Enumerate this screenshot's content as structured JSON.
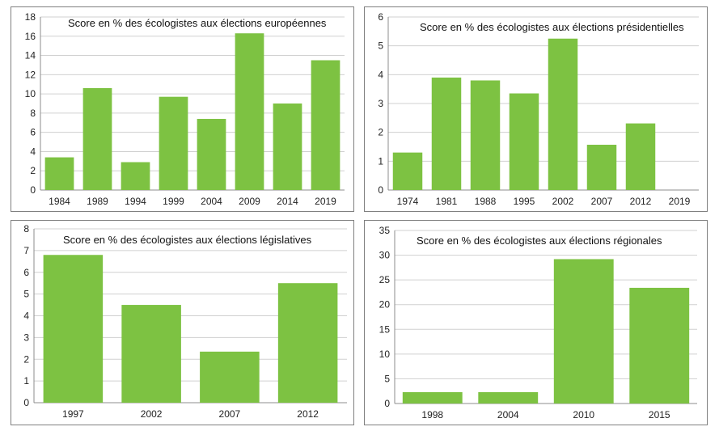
{
  "chart_data": [
    {
      "type": "bar",
      "title": "Score en % des écologistes aux élections européennes",
      "categories": [
        "1984",
        "1989",
        "1994",
        "1999",
        "2004",
        "2009",
        "2014",
        "2019"
      ],
      "values": [
        3.4,
        10.6,
        2.9,
        9.7,
        7.4,
        16.3,
        9.0,
        13.5
      ],
      "ylim": [
        0,
        18
      ],
      "yticks": [
        "0",
        "2",
        "4",
        "6",
        "8",
        "10",
        "12",
        "14",
        "16",
        "18"
      ],
      "grid": true,
      "bar_color": "#7dc242"
    },
    {
      "type": "bar",
      "title": "Score en % des écologistes aux élections présidentielles",
      "categories": [
        "1974",
        "1981",
        "1988",
        "1995",
        "2002",
        "2007",
        "2012",
        "2019"
      ],
      "values": [
        1.3,
        3.9,
        3.8,
        3.35,
        5.25,
        1.57,
        2.31,
        0
      ],
      "ylim": [
        0,
        6
      ],
      "yticks": [
        "0",
        "1",
        "2",
        "3",
        "4",
        "5",
        "6"
      ],
      "grid": true,
      "bar_color": "#7dc242"
    },
    {
      "type": "bar",
      "title": "Score en % des écologistes aux élections législatives",
      "categories": [
        "1997",
        "2002",
        "2007",
        "2012"
      ],
      "values": [
        6.8,
        4.5,
        2.35,
        5.5
      ],
      "ylim": [
        0,
        8
      ],
      "yticks": [
        "0",
        "1",
        "2",
        "3",
        "4",
        "5",
        "6",
        "7",
        "8"
      ],
      "grid": true,
      "bar_color": "#7dc242"
    },
    {
      "type": "bar",
      "title": "Score en % des écologistes aux élections régionales",
      "categories": [
        "1998",
        "2004",
        "2010",
        "2015"
      ],
      "values": [
        2.3,
        2.3,
        29.2,
        23.4
      ],
      "ylim": [
        0,
        35
      ],
      "yticks": [
        "0",
        "5",
        "10",
        "15",
        "20",
        "25",
        "30",
        "35"
      ],
      "grid": true,
      "bar_color": "#7dc242"
    }
  ]
}
